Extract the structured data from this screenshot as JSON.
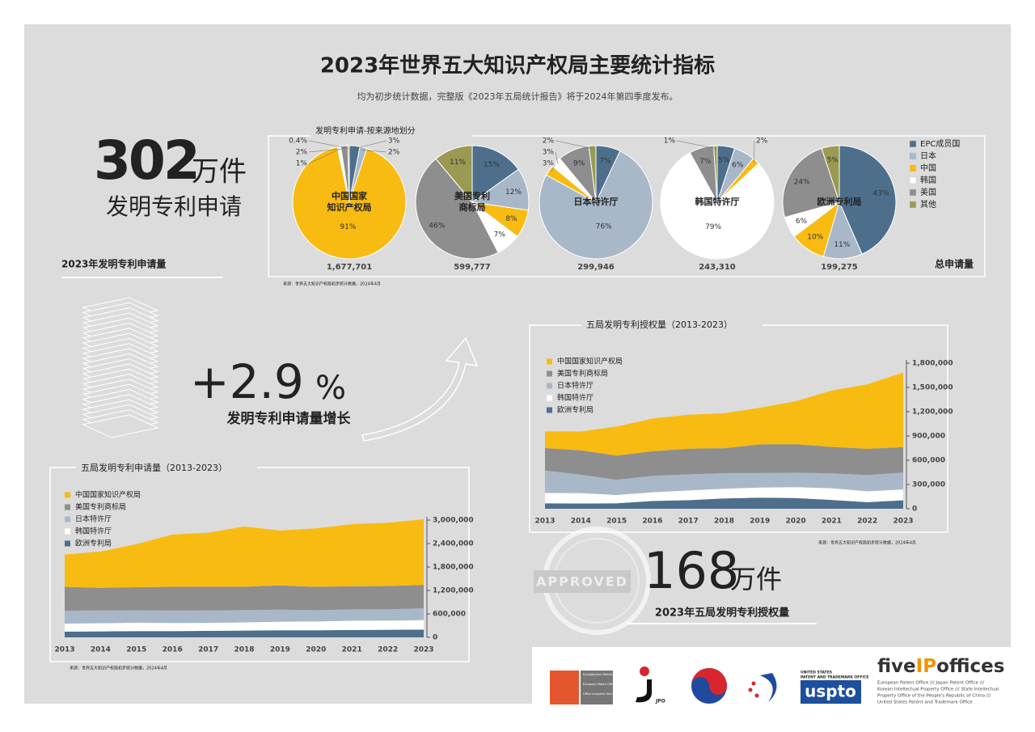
{
  "header": {
    "title": "2023年世界五大知识产权局主要统计指标",
    "subtitle": "均为初步统计数据，完整版《2023年五局统计报告》将于2024年第四季度发布。"
  },
  "highlights": {
    "applications": {
      "value": 302,
      "unit": "万件",
      "label": "发明专利申请",
      "section": "2023年发明专利申请量"
    },
    "growth": {
      "value": {
        "value": 2.9,
        "label": "+2.9"
      },
      "unit": "%",
      "label": "发明专利申请量增长"
    },
    "grants": {
      "value": 168,
      "unit": "万件",
      "label": "2023年五局发明专利授权量",
      "stamp": "APPROVED"
    }
  },
  "chart_data": [
    {
      "type": "pie",
      "title": "发明专利申请-按来源地划分",
      "categories": [
        "EPC成员国",
        "日本",
        "中国",
        "韩国",
        "美国",
        "其他"
      ],
      "colors": [
        "#4d6f8c",
        "#a8b8c8",
        "#f8bb12",
        "#ffffff",
        "#8e8e8e",
        "#9b9a52"
      ],
      "offices": [
        {
          "name": [
            "中国国家",
            "知识产权局"
          ],
          "total": {
            "value": 1677701,
            "label": "1,677,701"
          },
          "values": [
            3,
            2,
            91,
            1,
            2,
            0.4
          ],
          "value_labels": [
            "3%",
            "2%",
            "91%",
            "1%",
            "2%",
            "0.4%"
          ]
        },
        {
          "name": [
            "美国专利",
            "商标局"
          ],
          "total": {
            "value": 599777,
            "label": "599,777"
          },
          "values": [
            15,
            12,
            8,
            7,
            46,
            11
          ],
          "value_labels": [
            "15%",
            "12%",
            "8%",
            "7%",
            "46%",
            "11%"
          ]
        },
        {
          "name": [
            "日本特许厅"
          ],
          "total": {
            "value": 299946,
            "label": "299,946"
          },
          "values": [
            7,
            76,
            3,
            3,
            9,
            2
          ],
          "value_labels": [
            "7%",
            "76%",
            "3%",
            "3%",
            "9%",
            "2%"
          ]
        },
        {
          "name": [
            "韩国特许厅"
          ],
          "total": {
            "value": 243310,
            "label": "243,310"
          },
          "values": [
            5,
            6,
            2,
            79,
            7,
            1
          ],
          "value_labels": [
            "5%",
            "6%",
            "2%",
            "79%",
            "7%",
            "1%"
          ]
        },
        {
          "name": [
            "欧洲专利局"
          ],
          "total": {
            "value": 199275,
            "label": "199,275"
          },
          "values": [
            43,
            11,
            10,
            6,
            24,
            5
          ],
          "value_labels": [
            "43%",
            "11%",
            "10%",
            "6%",
            "24%",
            "5%"
          ]
        }
      ],
      "total_title": "总申请量",
      "source": "来源：世界五大知识产权局初步统计数据，2024年4月"
    },
    {
      "type": "area",
      "title": "五局发明专利申请量（2013-2023）",
      "categories": [
        "2013",
        "2014",
        "2015",
        "2016",
        "2017",
        "2018",
        "2019",
        "2020",
        "2021",
        "2022",
        "2023"
      ],
      "series": [
        {
          "name": "中国国家知识产权局",
          "color": "#f8bb12",
          "values": [
            825000,
            928000,
            1102000,
            1339000,
            1382000,
            1542000,
            1401000,
            1497000,
            1586000,
            1619000,
            1678000
          ]
        },
        {
          "name": "美国专利商标局",
          "color": "#8e8e8e",
          "values": [
            610000,
            579000,
            590000,
            606000,
            607000,
            597000,
            621000,
            597000,
            591000,
            594000,
            600000
          ]
        },
        {
          "name": "日本特许厅",
          "color": "#a8b8c8",
          "values": [
            329000,
            326000,
            319000,
            318000,
            318000,
            314000,
            308000,
            288000,
            289000,
            289000,
            300000
          ]
        },
        {
          "name": "韩国特许厅",
          "color": "#ffffff",
          "values": [
            205000,
            210000,
            214000,
            208000,
            205000,
            210000,
            219000,
            227000,
            238000,
            237000,
            243000
          ]
        },
        {
          "name": "欧洲专利局",
          "color": "#4d6f8c",
          "values": [
            148000,
            152000,
            160000,
            160000,
            166000,
            174000,
            181000,
            180000,
            189000,
            193000,
            199000
          ]
        }
      ],
      "ylim": [
        0,
        3000000
      ],
      "yticks": [
        0,
        {
          "value": 600000,
          "label": "600,000"
        },
        {
          "value": 1200000,
          "label": "1,200,000"
        },
        {
          "value": 1800000,
          "label": "1,800,000"
        },
        {
          "value": 2400000,
          "label": "2,400,000"
        },
        {
          "value": 3000000,
          "label": "3,000,000"
        }
      ],
      "source": "来源：世界五大知识产权局初步统计数据，2024年4月"
    },
    {
      "type": "area",
      "title": "五局发明专利授权量（2013-2023）",
      "categories": [
        "2013",
        "2014",
        "2015",
        "2016",
        "2017",
        "2018",
        "2019",
        "2020",
        "2021",
        "2022",
        "2023"
      ],
      "series": [
        {
          "name": "中国国家知识产权局",
          "color": "#f8bb12",
          "values": [
            208000,
            233000,
            359000,
            404000,
            420000,
            432000,
            453000,
            531000,
            696000,
            798000,
            921000
          ]
        },
        {
          "name": "美国专利商标局",
          "color": "#8e8e8e",
          "values": [
            278000,
            301000,
            298000,
            304000,
            318000,
            308000,
            355000,
            352000,
            327000,
            324000,
            315000
          ]
        },
        {
          "name": "日本特许厅",
          "color": "#a8b8c8",
          "values": [
            277000,
            227000,
            189000,
            203000,
            199000,
            194000,
            179000,
            179000,
            184000,
            201000,
            209000
          ]
        },
        {
          "name": "韩国特许厅",
          "color": "#ffffff",
          "values": [
            128000,
            129000,
            102000,
            108000,
            120000,
            119000,
            125000,
            134000,
            145000,
            135000,
            134000
          ]
        },
        {
          "name": "欧洲专利局",
          "color": "#4d6f8c",
          "values": [
            67000,
            65000,
            68000,
            96000,
            106000,
            128000,
            137000,
            133000,
            109000,
            81000,
            105000
          ]
        }
      ],
      "ylim": [
        0,
        1800000
      ],
      "yticks": [
        0,
        {
          "value": 300000,
          "label": "300,000"
        },
        {
          "value": 600000,
          "label": "600,000"
        },
        {
          "value": 900000,
          "label": "900,000"
        },
        {
          "value": 1200000,
          "label": "1,200,000"
        },
        {
          "value": 1500000,
          "label": "1,500,000"
        },
        {
          "value": 1800000,
          "label": "1,800,000"
        }
      ],
      "source": "来源：世界五大知识产权局初步统计数据，2024年4月"
    }
  ],
  "footer": {
    "brand": [
      "five",
      "IP",
      "offices"
    ],
    "description": [
      "European Patent Office /// Japan Patent Office ///",
      "Korean Intellectual Property Office /// State Intellectual",
      "Property Office of the People's Republic of China ///",
      "United States Patent and Trademark Office"
    ],
    "epo": [
      "Europäisches Patentamt",
      "European Patent Office",
      "Office européen des brevets"
    ],
    "jpo": "JPO",
    "uspto": {
      "small": [
        "UNITED STATES",
        "PATENT AND TRADEMARK OFFICE"
      ],
      "mark": "uspto"
    }
  }
}
